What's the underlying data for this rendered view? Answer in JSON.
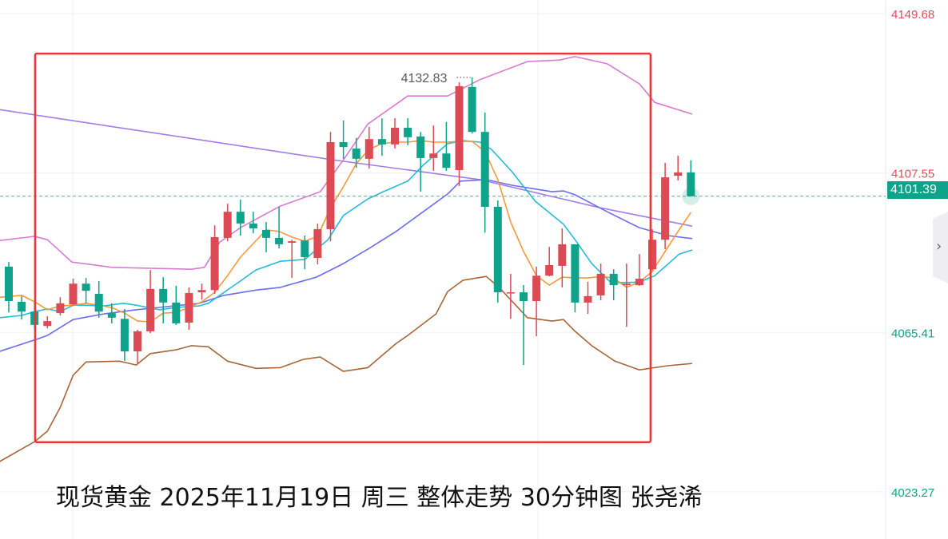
{
  "caption": "现货黄金 2025年11月19日 周三 整体走势 30分钟图 张尧浠",
  "colors": {
    "up": "#dc4a55",
    "down": "#0ea38a",
    "box": "#ee3535",
    "axis_up": "#e0505a",
    "axis_down": "#13a286",
    "ma5": "#f7993a",
    "ma10": "#22bcd8",
    "ma20": "#6b6df0",
    "ma_long": "#a27ce6",
    "boll_upper": "#d97ad0",
    "boll_lower": "#a8663a"
  },
  "side_tab": {
    "icon": "chevron-right-icon",
    "glyph": "›"
  },
  "chart_data": {
    "type": "candlestick",
    "ylim": [
      4010.8,
      4153.27
    ],
    "grid": true,
    "y_ticks": [
      {
        "value": 4149.68,
        "label": "4149.68",
        "side": "up"
      },
      {
        "value": 4107.55,
        "label": "4107.55",
        "side": "up"
      },
      {
        "value": 4065.41,
        "label": "4065.41",
        "side": "down"
      },
      {
        "value": 4023.27,
        "label": "4023.27",
        "side": "down"
      }
    ],
    "last_price": {
      "value": 4101.39,
      "label": "4101.39"
    },
    "high_annotation": {
      "index": 37,
      "value": 4132.83,
      "label": "4132.83"
    },
    "highlight_box": {
      "index_from": 3.2,
      "index_to": 50.9,
      "price_from": 4036.4,
      "price_to": 4139.1
    },
    "candles": [
      [
        4082.8,
        4084.0,
        4070.7,
        4073.7
      ],
      [
        4073.5,
        4075.0,
        4068.8,
        4070.9
      ],
      [
        4070.9,
        4073.5,
        4066.3,
        4067.4
      ],
      [
        4067.1,
        4069.7,
        4066.5,
        4068.4
      ],
      [
        4070.5,
        4074.7,
        4069.9,
        4073.1
      ],
      [
        4072.8,
        4079.6,
        4072.4,
        4078.3
      ],
      [
        4078.3,
        4079.8,
        4073.1,
        4076.4
      ],
      [
        4075.6,
        4079.0,
        4069.3,
        4070.9
      ],
      [
        4070.5,
        4073.1,
        4067.8,
        4069.3
      ],
      [
        4069.0,
        4071.6,
        4057.9,
        4060.4
      ],
      [
        4060.4,
        4066.1,
        4057.2,
        4065.7
      ],
      [
        4065.7,
        4081.9,
        4065.2,
        4076.9
      ],
      [
        4076.9,
        4080.0,
        4067.8,
        4073.3
      ],
      [
        4073.3,
        4077.7,
        4067.4,
        4067.8
      ],
      [
        4068.0,
        4077.3,
        4066.1,
        4075.8
      ],
      [
        4076.0,
        4078.3,
        4074.1,
        4076.6
      ],
      [
        4076.6,
        4093.7,
        4075.6,
        4090.6
      ],
      [
        4090.4,
        4099.4,
        4089.5,
        4097.3
      ],
      [
        4097.3,
        4100.5,
        4091.0,
        4094.2
      ],
      [
        4094.2,
        4097.3,
        4091.6,
        4092.9
      ],
      [
        4092.5,
        4094.6,
        4086.6,
        4090.4
      ],
      [
        4090.4,
        4098.6,
        4087.6,
        4088.7
      ],
      [
        4089.1,
        4089.9,
        4079.8,
        4089.5
      ],
      [
        4089.7,
        4091.0,
        4082.1,
        4085.3
      ],
      [
        4085.1,
        4094.2,
        4083.4,
        4092.7
      ],
      [
        4092.7,
        4118.4,
        4089.5,
        4115.7
      ],
      [
        4115.7,
        4121.4,
        4111.3,
        4114.4
      ],
      [
        4114.0,
        4116.8,
        4108.9,
        4111.3
      ],
      [
        4111.3,
        4119.7,
        4108.7,
        4116.5
      ],
      [
        4116.5,
        4122.0,
        4112.1,
        4115.1
      ],
      [
        4115.1,
        4122.0,
        4114.0,
        4119.5
      ],
      [
        4119.5,
        4122.0,
        4114.9,
        4117.0
      ],
      [
        4117.2,
        4118.4,
        4102.6,
        4111.5
      ],
      [
        4111.5,
        4120.1,
        4108.1,
        4112.7
      ],
      [
        4112.7,
        4121.0,
        4108.1,
        4108.9
      ],
      [
        4108.3,
        4131.5,
        4104.1,
        4130.5
      ],
      [
        4130.3,
        4132.83,
        4118.0,
        4118.4
      ],
      [
        4118.4,
        4123.5,
        4091.8,
        4098.6
      ],
      [
        4098.6,
        4100.3,
        4073.3,
        4076.0
      ],
      [
        4075.8,
        4080.9,
        4069.0,
        4076.0
      ],
      [
        4076.0,
        4077.9,
        4056.8,
        4073.7
      ],
      [
        4073.7,
        4082.8,
        4064.4,
        4080.4
      ],
      [
        4080.4,
        4088.0,
        4080.2,
        4083.2
      ],
      [
        4083.0,
        4092.9,
        4077.3,
        4088.7
      ],
      [
        4088.7,
        4088.7,
        4070.7,
        4073.3
      ],
      [
        4073.3,
        4078.8,
        4070.3,
        4075.0
      ],
      [
        4075.2,
        4083.6,
        4073.9,
        4080.9
      ],
      [
        4080.9,
        4082.1,
        4073.9,
        4077.9
      ],
      [
        4077.9,
        4083.6,
        4066.9,
        4078.3
      ],
      [
        4077.9,
        4086.1,
        4077.7,
        4079.6
      ],
      [
        4082.1,
        4092.7,
        4081.9,
        4089.9
      ],
      [
        4089.9,
        4110.2,
        4087.4,
        4106.4
      ],
      [
        4106.8,
        4112.1,
        4105.6,
        4107.7
      ],
      [
        4107.7,
        4110.9,
        4102.6,
        4101.39
      ]
    ],
    "lines": [
      {
        "key": "ma_long",
        "points": [
          [
            0.3,
            4124.3
          ],
          [
            26.1,
            4111.05
          ],
          [
            37.6,
            4105.8
          ],
          [
            46.9,
            4098.4
          ],
          [
            54.1,
            4093.5
          ]
        ]
      },
      {
        "key": "boll_upper",
        "points": [
          [
            0.3,
            4089.7
          ],
          [
            3.0,
            4090.8
          ],
          [
            4.0,
            4089.9
          ],
          [
            5.9,
            4084.0
          ],
          [
            9.0,
            4082.6
          ],
          [
            15.2,
            4082.1
          ],
          [
            16.2,
            4082.6
          ],
          [
            17.4,
            4089.3
          ],
          [
            19.0,
            4093.1
          ],
          [
            22.1,
            4098.8
          ],
          [
            25.2,
            4102.6
          ],
          [
            27.0,
            4111.0
          ],
          [
            28.9,
            4120.5
          ],
          [
            32.0,
            4127.9
          ],
          [
            35.1,
            4127.9
          ],
          [
            37.6,
            4132.2
          ],
          [
            41.3,
            4137.0
          ],
          [
            43.8,
            4137.4
          ],
          [
            45.0,
            4138.3
          ],
          [
            47.5,
            4136.4
          ],
          [
            50.0,
            4131.1
          ],
          [
            51.2,
            4126.2
          ],
          [
            54.1,
            4123.1
          ]
        ]
      },
      {
        "key": "boll_lower",
        "points": [
          [
            0.3,
            4031.3
          ],
          [
            3.0,
            4036.5
          ],
          [
            4.0,
            4039.3
          ],
          [
            5.0,
            4045.6
          ],
          [
            6.0,
            4054.1
          ],
          [
            7.0,
            4057.6
          ],
          [
            9.6,
            4057.8
          ],
          [
            10.9,
            4056.8
          ],
          [
            12.0,
            4059.8
          ],
          [
            14.0,
            4060.8
          ],
          [
            15.2,
            4061.9
          ],
          [
            16.5,
            4061.6
          ],
          [
            18.0,
            4057.8
          ],
          [
            20.2,
            4055.9
          ],
          [
            22.1,
            4056.1
          ],
          [
            23.9,
            4058.3
          ],
          [
            25.2,
            4058.9
          ],
          [
            27.0,
            4055.1
          ],
          [
            28.9,
            4056.1
          ],
          [
            31.1,
            4062.5
          ],
          [
            32.0,
            4064.6
          ],
          [
            34.2,
            4070.3
          ],
          [
            35.1,
            4076.2
          ],
          [
            36.3,
            4079.2
          ],
          [
            38.1,
            4080.2
          ],
          [
            39.1,
            4077.3
          ],
          [
            41.3,
            4069.3
          ],
          [
            43.2,
            4068.4
          ],
          [
            44.1,
            4068.8
          ],
          [
            45.0,
            4065.7
          ],
          [
            46.3,
            4061.9
          ],
          [
            48.1,
            4057.8
          ],
          [
            50.0,
            4055.5
          ],
          [
            52.2,
            4056.6
          ],
          [
            54.1,
            4057.2
          ]
        ]
      },
      {
        "key": "ma20",
        "points": [
          [
            0.3,
            4060.4
          ],
          [
            3.1,
            4063.5
          ],
          [
            4.0,
            4064.6
          ],
          [
            6.0,
            4068.8
          ],
          [
            8.4,
            4070.3
          ],
          [
            10.9,
            4071.4
          ],
          [
            12.7,
            4072.0
          ],
          [
            15.8,
            4073.1
          ],
          [
            17.7,
            4075.2
          ],
          [
            20.2,
            4076.6
          ],
          [
            22.1,
            4077.3
          ],
          [
            24.9,
            4080.0
          ],
          [
            27.0,
            4083.6
          ],
          [
            28.9,
            4087.4
          ],
          [
            31.1,
            4092.1
          ],
          [
            33.2,
            4097.3
          ],
          [
            35.1,
            4102.0
          ],
          [
            36.1,
            4105.4
          ],
          [
            38.1,
            4105.8
          ],
          [
            40.1,
            4104.3
          ],
          [
            43.2,
            4102.6
          ],
          [
            44.1,
            4102.8
          ],
          [
            45.0,
            4101.8
          ],
          [
            47.5,
            4097.3
          ],
          [
            50.0,
            4093.1
          ],
          [
            52.2,
            4091.0
          ],
          [
            54.1,
            4090.2
          ]
        ]
      },
      {
        "key": "ma10",
        "points": [
          [
            0.3,
            4069.3
          ],
          [
            2.0,
            4069.9
          ],
          [
            3.0,
            4070.9
          ],
          [
            4.0,
            4071.6
          ],
          [
            5.0,
            4070.9
          ],
          [
            6.0,
            4072.6
          ],
          [
            6.8,
            4072.6
          ],
          [
            8.4,
            4072.4
          ],
          [
            9.9,
            4073.1
          ],
          [
            10.9,
            4072.6
          ],
          [
            12.7,
            4071.4
          ],
          [
            14.0,
            4072.0
          ],
          [
            15.8,
            4072.4
          ],
          [
            16.5,
            4073.1
          ],
          [
            19.0,
            4079.0
          ],
          [
            20.2,
            4081.9
          ],
          [
            22.1,
            4084.2
          ],
          [
            24.0,
            4084.7
          ],
          [
            25.8,
            4089.9
          ],
          [
            27.0,
            4096.3
          ],
          [
            28.9,
            4100.7
          ],
          [
            30.1,
            4102.6
          ],
          [
            32.0,
            4105.4
          ],
          [
            33.2,
            4109.6
          ],
          [
            35.1,
            4115.3
          ],
          [
            36.3,
            4116.1
          ],
          [
            37.6,
            4115.7
          ],
          [
            38.5,
            4113.8
          ],
          [
            40.1,
            4107.9
          ],
          [
            41.9,
            4100.1
          ],
          [
            44.1,
            4094.0
          ],
          [
            45.0,
            4089.9
          ],
          [
            46.3,
            4083.6
          ],
          [
            47.8,
            4078.5
          ],
          [
            50.0,
            4078.7
          ],
          [
            51.2,
            4080.4
          ],
          [
            53.1,
            4086.1
          ],
          [
            54.1,
            4087.2
          ]
        ]
      },
      {
        "key": "ma5",
        "points": [
          [
            0.3,
            4074.7
          ],
          [
            2,
            4075.2
          ],
          [
            3,
            4073.5
          ],
          [
            4,
            4071.4
          ],
          [
            5,
            4072.4
          ],
          [
            6,
            4072.6
          ],
          [
            7,
            4073.1
          ],
          [
            9,
            4072.0
          ],
          [
            10,
            4070.5
          ],
          [
            11,
            4068.4
          ],
          [
            12,
            4068.2
          ],
          [
            13,
            4070.5
          ],
          [
            14,
            4070.7
          ],
          [
            15,
            4072.0
          ],
          [
            16,
            4073.5
          ],
          [
            17,
            4076.0
          ],
          [
            18,
            4080.4
          ],
          [
            19,
            4085.3
          ],
          [
            20,
            4088.9
          ],
          [
            21,
            4092.5
          ],
          [
            22,
            4092.1
          ],
          [
            23,
            4090.6
          ],
          [
            24,
            4089.5
          ],
          [
            25,
            4090.8
          ],
          [
            26,
            4098.4
          ],
          [
            27,
            4103.9
          ],
          [
            28,
            4110.0
          ],
          [
            29,
            4113.8
          ],
          [
            30,
            4115.3
          ],
          [
            31,
            4115.7
          ],
          [
            32,
            4115.7
          ],
          [
            33,
            4116.1
          ],
          [
            34,
            4115.7
          ],
          [
            35,
            4115.7
          ],
          [
            36,
            4115.9
          ],
          [
            37,
            4115.9
          ],
          [
            38,
            4113.2
          ],
          [
            39,
            4105.8
          ],
          [
            40,
            4094.6
          ],
          [
            41,
            4086.8
          ],
          [
            42,
            4080.4
          ],
          [
            43,
            4077.9
          ],
          [
            44,
            4080.0
          ],
          [
            45,
            4079.8
          ],
          [
            46,
            4079.8
          ],
          [
            47,
            4080.2
          ],
          [
            48,
            4079.8
          ],
          [
            49,
            4077.3
          ],
          [
            50,
            4078.7
          ],
          [
            51,
            4081.5
          ],
          [
            52,
            4086.8
          ],
          [
            53,
            4092.1
          ],
          [
            54,
            4097.1
          ]
        ]
      }
    ]
  }
}
